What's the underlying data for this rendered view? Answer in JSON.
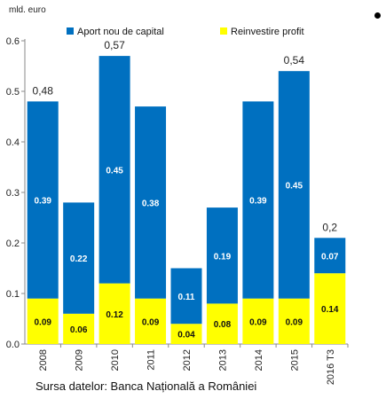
{
  "unit_label": "mld. euro",
  "source_text": "Sursa datelor: Banca Națională a României",
  "chart_data": {
    "type": "bar",
    "stacked": true,
    "categories": [
      "2008",
      "2009",
      "2010",
      "2011",
      "2012",
      "2013",
      "2014",
      "2015",
      "2016 T3"
    ],
    "series": [
      {
        "name": "Reinvestire profit",
        "color": "#ffff00",
        "values": [
          0.09,
          0.06,
          0.12,
          0.09,
          0.04,
          0.08,
          0.09,
          0.09,
          0.14
        ],
        "labels": [
          "0.09",
          "0.06",
          "0.12",
          "0.09",
          "0.04",
          "0.08",
          "0.09",
          "0.09",
          "0.14"
        ]
      },
      {
        "name": "Aport nou de capital",
        "color": "#0070c0",
        "values": [
          0.39,
          0.22,
          0.45,
          0.38,
          0.11,
          0.19,
          0.39,
          0.45,
          0.07
        ],
        "labels": [
          "0.39",
          "0.22",
          "0.45",
          "0.38",
          "0.11",
          "0.19",
          "0.39",
          "0.45",
          "0.07"
        ]
      }
    ],
    "total_labels": [
      "0,48",
      "",
      "0,57",
      "",
      "",
      "",
      "",
      "0,54",
      "0,2"
    ],
    "ylim": [
      0,
      0.6
    ],
    "yticks": [
      "0.0",
      "0.1",
      "0.2",
      "0.3",
      "0.4",
      "0.5",
      "0.6"
    ],
    "grid": false,
    "legend_position": "top"
  }
}
